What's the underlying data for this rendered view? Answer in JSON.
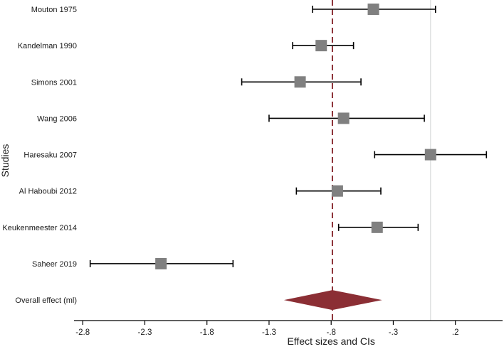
{
  "chart_data": {
    "type": "forest",
    "xlabel": "Effect sizes and CIs",
    "ylabel": "Studies",
    "xlim": [
      -2.87,
      0.58
    ],
    "x_ticks": [
      -2.8,
      -2.3,
      -1.8,
      -1.3,
      -0.8,
      -0.3,
      0.2
    ],
    "x_tick_labels": [
      "-2.8",
      "-2.3",
      "-1.8",
      "-1.3",
      "-.8",
      "-.3",
      ".2"
    ],
    "null_line": 0,
    "overall_line": -0.79,
    "grid": false,
    "studies": [
      {
        "label": "Mouton 1975",
        "estimate": -0.46,
        "lower": -0.95,
        "upper": 0.04
      },
      {
        "label": "Kandelman 1990",
        "estimate": -0.88,
        "lower": -1.11,
        "upper": -0.62
      },
      {
        "label": "Simons 2001",
        "estimate": -1.05,
        "lower": -1.52,
        "upper": -0.56
      },
      {
        "label": "Wang 2006",
        "estimate": -0.7,
        "lower": -1.3,
        "upper": -0.05
      },
      {
        "label": "Haresaku 2007",
        "estimate": 0.0,
        "lower": -0.45,
        "upper": 0.45
      },
      {
        "label": "Al Haboubi 2012",
        "estimate": -0.75,
        "lower": -1.08,
        "upper": -0.4
      },
      {
        "label": "Keukenmeester 2014",
        "estimate": -0.43,
        "lower": -0.74,
        "upper": -0.1
      },
      {
        "label": "Saheer 2019",
        "estimate": -2.17,
        "lower": -2.74,
        "upper": -1.59
      }
    ],
    "overall": {
      "label": "Overall effect (ml)",
      "estimate": -0.79,
      "lower": -1.18,
      "upper": -0.39
    },
    "colors": {
      "marker": "#808080",
      "ci": "#000000",
      "diamond": "#8b2e34",
      "overall_line": "#8b2e34",
      "null_line": "#d8dcdc"
    }
  }
}
